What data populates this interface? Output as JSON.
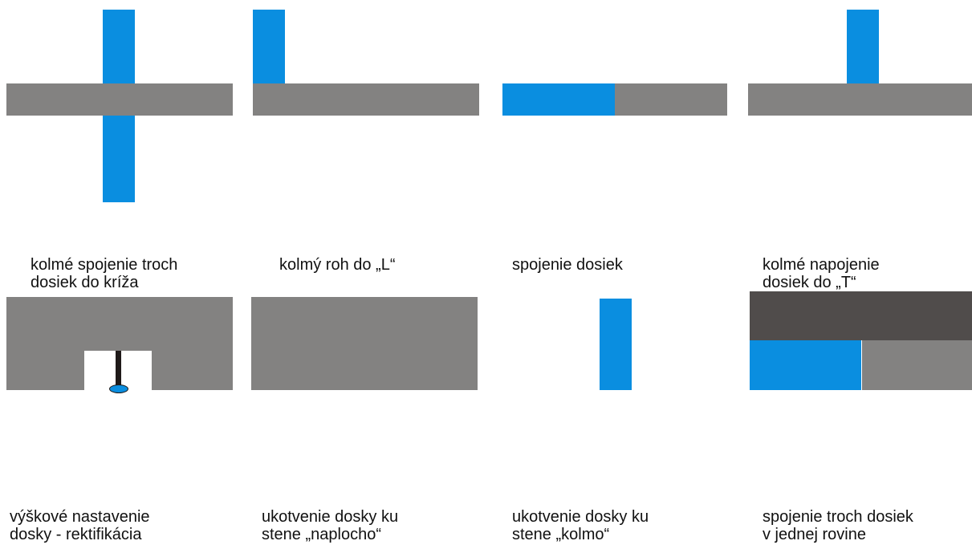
{
  "colors": {
    "board": "#838281",
    "joining_board": "#0a8ee0",
    "dark_board": "#504c4b",
    "bolt": "#1f1a19"
  },
  "captions": {
    "cross": "kolmé spojenie troch\ndosiek do kríža",
    "corner_l": "kolmý roh do „L“",
    "joint": "spojenie dosiek",
    "t_joint": "kolmé napojenie\ndosiek do „T“",
    "height_adjust": "výškové nastavenie\ndosky - rektifikácia",
    "anchor_flat": "ukotvenie dosky ku\nstene „naplocho“",
    "anchor_perpendicular": "ukotvenie dosky ku\nstene „kolmo“",
    "three_plane": "spojenie troch dosiek\nv jednej rovine"
  }
}
